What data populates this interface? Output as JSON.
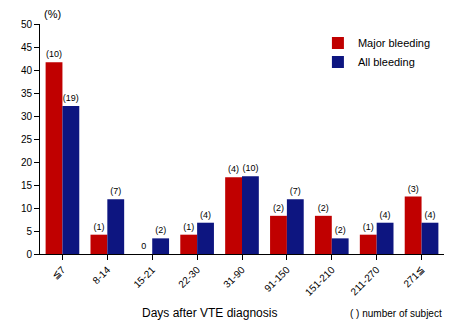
{
  "chart_data": {
    "type": "bar",
    "ylabel": "(%)",
    "xlabel": "Days after VTE diagnosis",
    "annotations": [
      "( ) number of subject"
    ],
    "categories": [
      "≦7",
      "8-14",
      "15-21",
      "22-30",
      "31-90",
      "91-150",
      "151-210",
      "211-270",
      "271≦"
    ],
    "series": [
      {
        "name": "Major bleeding",
        "color": "#c00000",
        "values": [
          41.7,
          4.2,
          0,
          4.2,
          16.7,
          8.3,
          8.3,
          4.2,
          12.5
        ],
        "text_labels": [
          "(10)",
          "(1)",
          "0",
          "(1)",
          "(4)",
          "(2)",
          "(2)",
          "(1)",
          "(3)"
        ]
      },
      {
        "name": "All bleeding",
        "color": "#0d1580",
        "values": [
          32.2,
          11.9,
          3.4,
          6.8,
          16.9,
          11.9,
          3.4,
          6.8,
          6.8
        ],
        "text_labels": [
          "(19)",
          "(7)",
          "(2)",
          "(4)",
          "(10)",
          "(7)",
          "(2)",
          "(4)",
          "(4)"
        ]
      }
    ],
    "ylim": [
      0,
      50
    ],
    "yticks": [
      0,
      5,
      10,
      15,
      20,
      25,
      30,
      35,
      40,
      45,
      50
    ],
    "grid": false,
    "legend": "upper right"
  }
}
